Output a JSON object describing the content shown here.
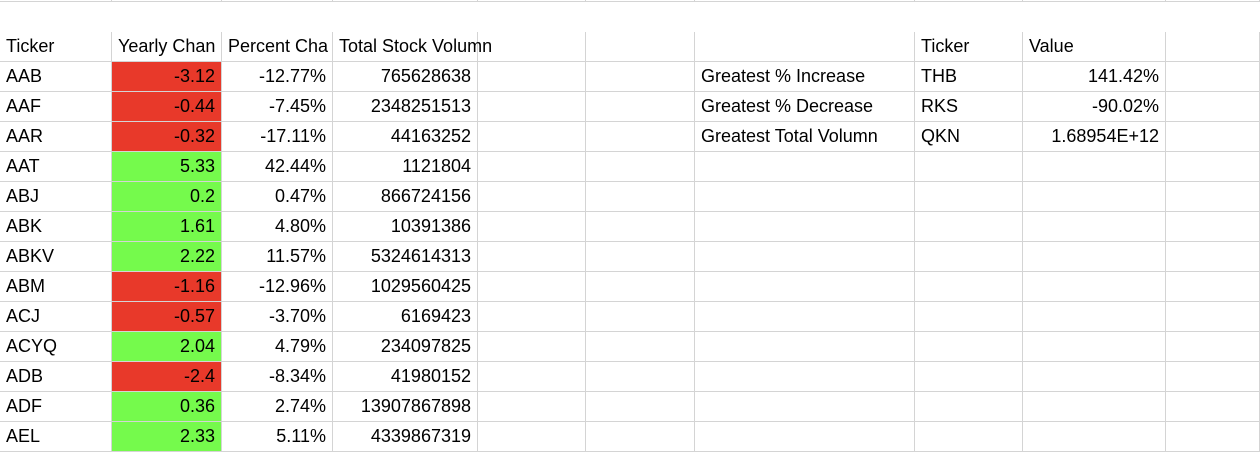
{
  "headers": {
    "ticker": "Ticker",
    "yearly_change": "Yearly Chan",
    "percent_change": "Percent Cha",
    "total_volume": "Total Stock Volumn",
    "summary_ticker": "Ticker",
    "summary_value": "Value"
  },
  "rows": [
    {
      "ticker": "AAB",
      "yearly_change": "-3.12",
      "percent_change": "-12.77%",
      "total_volume": "765628638",
      "fill": "red"
    },
    {
      "ticker": "AAF",
      "yearly_change": "-0.44",
      "percent_change": "-7.45%",
      "total_volume": "2348251513",
      "fill": "red"
    },
    {
      "ticker": "AAR",
      "yearly_change": "-0.32",
      "percent_change": "-17.11%",
      "total_volume": "44163252",
      "fill": "red"
    },
    {
      "ticker": "AAT",
      "yearly_change": "5.33",
      "percent_change": "42.44%",
      "total_volume": "1121804",
      "fill": "green"
    },
    {
      "ticker": "ABJ",
      "yearly_change": "0.2",
      "percent_change": "0.47%",
      "total_volume": "866724156",
      "fill": "green"
    },
    {
      "ticker": "ABK",
      "yearly_change": "1.61",
      "percent_change": "4.80%",
      "total_volume": "10391386",
      "fill": "green"
    },
    {
      "ticker": "ABKV",
      "yearly_change": "2.22",
      "percent_change": "11.57%",
      "total_volume": "5324614313",
      "fill": "green"
    },
    {
      "ticker": "ABM",
      "yearly_change": "-1.16",
      "percent_change": "-12.96%",
      "total_volume": "1029560425",
      "fill": "red"
    },
    {
      "ticker": "ACJ",
      "yearly_change": "-0.57",
      "percent_change": "-3.70%",
      "total_volume": "6169423",
      "fill": "red"
    },
    {
      "ticker": "ACYQ",
      "yearly_change": "2.04",
      "percent_change": "4.79%",
      "total_volume": "234097825",
      "fill": "green"
    },
    {
      "ticker": "ADB",
      "yearly_change": "-2.4",
      "percent_change": "-8.34%",
      "total_volume": "41980152",
      "fill": "red"
    },
    {
      "ticker": "ADF",
      "yearly_change": "0.36",
      "percent_change": "2.74%",
      "total_volume": "13907867898",
      "fill": "green"
    },
    {
      "ticker": "AEL",
      "yearly_change": "2.33",
      "percent_change": "5.11%",
      "total_volume": "4339867319",
      "fill": "green"
    }
  ],
  "summary": [
    {
      "label": "Greatest % Increase",
      "ticker": "THB",
      "value": "141.42%"
    },
    {
      "label": "Greatest % Decrease",
      "ticker": "RKS",
      "value": "-90.02%"
    },
    {
      "label": "Greatest Total Volumn",
      "ticker": "QKN",
      "value": "1.68954E+12"
    }
  ],
  "colors": {
    "negative_fill": "#e8392a",
    "positive_fill": "#75fa4c",
    "gridline": "#d4d4d4",
    "selection": "#1d6b3a"
  }
}
